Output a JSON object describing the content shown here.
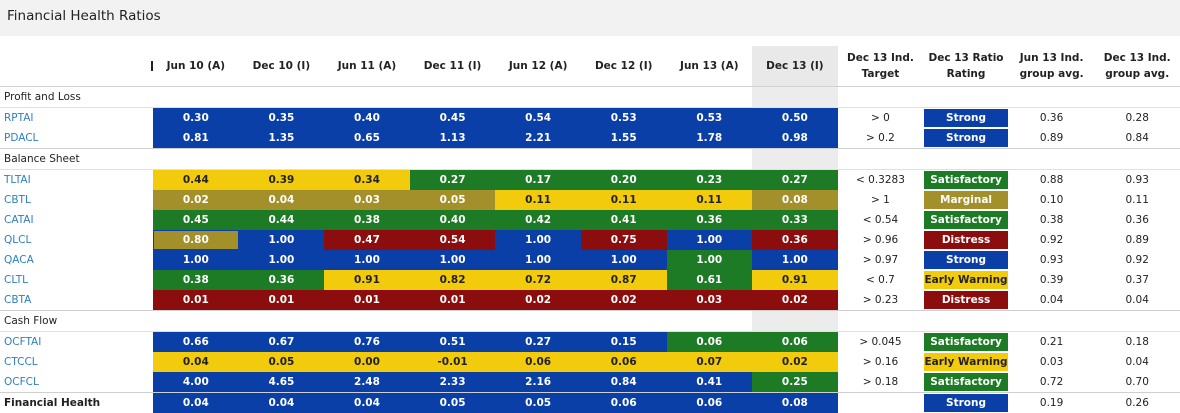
{
  "title": "Financial Health Ratios",
  "columns": {
    "periods": [
      "Jun 10 (A)",
      "Dec 10 (I)",
      "Jun 11 (A)",
      "Dec 11 (I)",
      "Jun 12 (A)",
      "Dec 12 (I)",
      "Jun 13 (A)",
      "Dec 13 (I)"
    ],
    "target": "Dec 13 Ind. Target",
    "rating": "Dec 13 Ratio Rating",
    "jun_avg": "Jun 13 Ind. group avg.",
    "dec_avg": "Dec 13 Ind. group avg."
  },
  "colors": {
    "blue": "#0a3fa8",
    "yellow": "#f2cc0c",
    "green": "#1c7b24",
    "olive": "#a4902a",
    "red": "#8b0d0d"
  },
  "sections": [
    {
      "name": "Profit and Loss",
      "rows": [
        {
          "label": "RPTAI",
          "values": [
            "0.30",
            "0.35",
            "0.40",
            "0.45",
            "0.54",
            "0.53",
            "0.53",
            "0.50"
          ],
          "colors": [
            "blue",
            "blue",
            "blue",
            "blue",
            "blue",
            "blue",
            "blue",
            "blue"
          ],
          "target": "> 0",
          "rating": "Strong",
          "rating_color": "blue",
          "jun_avg": "0.36",
          "dec_avg": "0.28"
        },
        {
          "label": "PDACL",
          "values": [
            "0.81",
            "1.35",
            "0.65",
            "1.13",
            "2.21",
            "1.55",
            "1.78",
            "0.98"
          ],
          "colors": [
            "blue",
            "blue",
            "blue",
            "blue",
            "blue",
            "blue",
            "blue",
            "blue"
          ],
          "target": "> 0.2",
          "rating": "Strong",
          "rating_color": "blue",
          "jun_avg": "0.89",
          "dec_avg": "0.84"
        }
      ]
    },
    {
      "name": "Balance Sheet",
      "rows": [
        {
          "label": "TLTAI",
          "values": [
            "0.44",
            "0.39",
            "0.34",
            "0.27",
            "0.17",
            "0.20",
            "0.23",
            "0.27"
          ],
          "colors": [
            "yellow",
            "yellow",
            "yellow",
            "green",
            "green",
            "green",
            "green",
            "green"
          ],
          "target": "< 0.3283",
          "rating": "Satisfactory",
          "rating_color": "green",
          "jun_avg": "0.88",
          "dec_avg": "0.93"
        },
        {
          "label": "CBTL",
          "values": [
            "0.02",
            "0.04",
            "0.03",
            "0.05",
            "0.11",
            "0.11",
            "0.11",
            "0.08"
          ],
          "colors": [
            "olive",
            "olive",
            "olive",
            "olive",
            "yellow",
            "yellow",
            "yellow",
            "olive"
          ],
          "target": "> 1",
          "rating": "Marginal",
          "rating_color": "olive",
          "jun_avg": "0.10",
          "dec_avg": "0.11"
        },
        {
          "label": "CATAI",
          "values": [
            "0.45",
            "0.44",
            "0.38",
            "0.40",
            "0.42",
            "0.41",
            "0.36",
            "0.33"
          ],
          "colors": [
            "green",
            "green",
            "green",
            "green",
            "green",
            "green",
            "green",
            "green"
          ],
          "target": "< 0.54",
          "rating": "Satisfactory",
          "rating_color": "green",
          "jun_avg": "0.38",
          "dec_avg": "0.36"
        },
        {
          "label": "QLCL",
          "values": [
            "0.80",
            "1.00",
            "0.47",
            "0.54",
            "1.00",
            "0.75",
            "1.00",
            "0.36"
          ],
          "colors": [
            "olive",
            "blue",
            "red",
            "red",
            "blue",
            "red",
            "blue",
            "red"
          ],
          "target": "> 0.96",
          "rating": "Distress",
          "rating_color": "red",
          "jun_avg": "0.92",
          "dec_avg": "0.89"
        },
        {
          "label": "QACA",
          "values": [
            "1.00",
            "1.00",
            "1.00",
            "1.00",
            "1.00",
            "1.00",
            "1.00",
            "1.00"
          ],
          "colors": [
            "blue",
            "blue",
            "blue",
            "blue",
            "blue",
            "blue",
            "green",
            "blue"
          ],
          "target": "> 0.97",
          "rating": "Strong",
          "rating_color": "blue",
          "jun_avg": "0.93",
          "dec_avg": "0.92"
        },
        {
          "label": "CLTL",
          "values": [
            "0.38",
            "0.36",
            "0.91",
            "0.82",
            "0.72",
            "0.87",
            "0.61",
            "0.91"
          ],
          "colors": [
            "green",
            "green",
            "yellow",
            "yellow",
            "yellow",
            "yellow",
            "green",
            "yellow"
          ],
          "target": "< 0.7",
          "rating": "Early Warning",
          "rating_color": "yellow",
          "jun_avg": "0.39",
          "dec_avg": "0.37"
        },
        {
          "label": "CBTA",
          "values": [
            "0.01",
            "0.01",
            "0.01",
            "0.01",
            "0.02",
            "0.02",
            "0.03",
            "0.02"
          ],
          "colors": [
            "red",
            "red",
            "red",
            "red",
            "red",
            "red",
            "red",
            "red"
          ],
          "target": "> 0.23",
          "rating": "Distress",
          "rating_color": "red",
          "jun_avg": "0.04",
          "dec_avg": "0.04"
        }
      ]
    },
    {
      "name": "Cash Flow",
      "rows": [
        {
          "label": "OCFTAI",
          "values": [
            "0.66",
            "0.67",
            "0.76",
            "0.51",
            "0.27",
            "0.15",
            "0.06",
            "0.06"
          ],
          "colors": [
            "blue",
            "blue",
            "blue",
            "blue",
            "blue",
            "blue",
            "green",
            "green"
          ],
          "target": "> 0.045",
          "rating": "Satisfactory",
          "rating_color": "green",
          "jun_avg": "0.21",
          "dec_avg": "0.18"
        },
        {
          "label": "CTCCL",
          "values": [
            "0.04",
            "0.05",
            "0.00",
            "-0.01",
            "0.06",
            "0.06",
            "0.07",
            "0.02"
          ],
          "colors": [
            "yellow",
            "yellow",
            "yellow",
            "yellow",
            "yellow",
            "yellow",
            "yellow",
            "yellow"
          ],
          "target": "> 0.16",
          "rating": "Early Warning",
          "rating_color": "yellow",
          "jun_avg": "0.03",
          "dec_avg": "0.04"
        },
        {
          "label": "OCFCL",
          "values": [
            "4.00",
            "4.65",
            "2.48",
            "2.33",
            "2.16",
            "0.84",
            "0.41",
            "0.25"
          ],
          "colors": [
            "blue",
            "blue",
            "blue",
            "blue",
            "blue",
            "blue",
            "blue",
            "green"
          ],
          "target": "> 0.18",
          "rating": "Satisfactory",
          "rating_color": "green",
          "jun_avg": "0.72",
          "dec_avg": "0.70"
        }
      ]
    }
  ],
  "financial_health": {
    "label": "Financial Health",
    "values": [
      "0.04",
      "0.04",
      "0.04",
      "0.05",
      "0.05",
      "0.06",
      "0.06",
      "0.08"
    ],
    "colors": [
      "blue",
      "blue",
      "blue",
      "blue",
      "blue",
      "blue",
      "blue",
      "blue"
    ],
    "target": "",
    "rating": "Strong",
    "rating_color": "blue",
    "jun_avg": "0.19",
    "dec_avg": "0.26"
  }
}
